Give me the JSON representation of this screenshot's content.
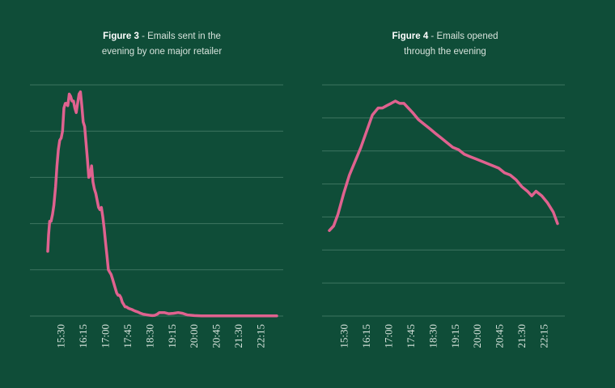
{
  "colors": {
    "background": "#0f4d38",
    "line": "#e0628f",
    "grid": "#3e7560",
    "tick_text": "#d7e3dc"
  },
  "chart_data": [
    {
      "type": "line",
      "title": "Figure 3 - Emails sent in the evening by one major retailer",
      "title_label": "Figure 3",
      "title_rest_1": " - Emails sent in the",
      "title_rest_2": "evening by one major retailer",
      "xlabel": "",
      "ylabel": "",
      "tick_labels": [
        "15:30",
        "16:15",
        "17:00",
        "17:45",
        "18:30",
        "19:15",
        "20:00",
        "20:45",
        "21:30",
        "22:15"
      ],
      "grid": true,
      "y_gridlines": 6,
      "xlim": [
        15,
        23.25
      ],
      "ylim": [
        0,
        100
      ],
      "series": [
        {
          "x": [
            15.0,
            15.03,
            15.07,
            15.12,
            15.17,
            15.22,
            15.28,
            15.33,
            15.38,
            15.43,
            15.48,
            15.53,
            15.58,
            15.63,
            15.67,
            15.72,
            15.77,
            15.82,
            15.87,
            15.92,
            15.97,
            16.02,
            16.07,
            16.12,
            16.17,
            16.22,
            16.27,
            16.32,
            16.37,
            16.42,
            16.47,
            16.52,
            16.57,
            16.62,
            16.67,
            16.72,
            16.77,
            16.82,
            16.87,
            16.92,
            16.97,
            17.02,
            17.07,
            17.12,
            17.17,
            17.22,
            17.27,
            17.32,
            17.37,
            17.42,
            17.47,
            17.52,
            17.57,
            17.62,
            17.67,
            17.72,
            17.77,
            17.82,
            17.87,
            17.92,
            17.97,
            18.02,
            18.07,
            18.12,
            18.17,
            18.22,
            18.27,
            18.32,
            18.37,
            18.42,
            18.47,
            18.52,
            18.57,
            18.62,
            18.67,
            18.75,
            18.83,
            18.92,
            19.0,
            19.17,
            19.33,
            19.5,
            19.67,
            19.83,
            20.0,
            20.25,
            20.5,
            20.75,
            21.0,
            21.5,
            22.0,
            22.5,
            23.0,
            23.2
          ],
          "y": [
            28,
            35,
            41,
            41,
            44,
            48,
            56,
            65,
            72,
            76,
            77,
            80,
            90,
            92,
            92,
            91,
            96,
            95,
            93,
            93,
            90,
            88,
            92,
            96,
            97,
            91,
            84,
            82,
            75,
            68,
            60,
            61,
            65,
            58,
            55,
            53,
            50,
            47,
            46,
            47,
            43,
            38,
            32,
            26,
            20,
            19,
            18,
            16,
            14,
            12,
            10,
            9,
            9,
            8,
            6,
            5,
            4,
            4,
            3.5,
            3.2,
            3,
            2.8,
            2.5,
            2.2,
            2,
            1.8,
            1.5,
            1.2,
            1,
            0.8,
            0.7,
            0.6,
            0.5,
            0.4,
            0.3,
            0.2,
            0.3,
            0.8,
            1.5,
            1.5,
            1,
            1.2,
            1.5,
            1.2,
            0.5,
            0.2,
            0.1,
            0.1,
            0.1,
            0.1,
            0.1,
            0.1,
            0.1,
            0.1
          ]
        }
      ]
    },
    {
      "type": "line",
      "title": "Figure 4 - Emails opened through the evening",
      "title_label": "Figure 4",
      "title_rest_1": " - Emails opened",
      "title_rest_2": "through the evening",
      "xlabel": "",
      "ylabel": "",
      "tick_labels": [
        "15:30",
        "16:15",
        "17:00",
        "17:45",
        "18:30",
        "19:15",
        "20:00",
        "20:45",
        "21:30",
        "22:15"
      ],
      "grid": true,
      "y_gridlines": 8,
      "xlim": [
        15,
        23.25
      ],
      "ylim": [
        0,
        100
      ],
      "series": [
        {
          "x": [
            15.0,
            15.15,
            15.3,
            15.5,
            15.7,
            15.9,
            16.1,
            16.3,
            16.5,
            16.7,
            16.85,
            17.0,
            17.15,
            17.3,
            17.45,
            17.6,
            17.75,
            17.9,
            18.1,
            18.3,
            18.5,
            18.7,
            18.9,
            19.1,
            19.3,
            19.5,
            19.7,
            19.9,
            20.1,
            20.3,
            20.5,
            20.7,
            20.9,
            21.1,
            21.3,
            21.5,
            21.7,
            21.9,
            22.05,
            22.2,
            22.4,
            22.6,
            22.8,
            22.95
          ],
          "y": [
            37,
            39,
            44,
            53,
            61,
            67,
            73,
            80,
            87,
            90,
            90,
            91,
            92,
            93,
            92,
            92,
            90,
            88,
            85,
            83,
            81,
            79,
            77,
            75,
            73,
            72,
            70,
            69,
            68,
            67,
            66,
            65,
            64,
            62,
            61,
            59,
            56,
            54,
            52,
            54,
            52,
            49,
            45,
            40
          ]
        }
      ]
    }
  ]
}
